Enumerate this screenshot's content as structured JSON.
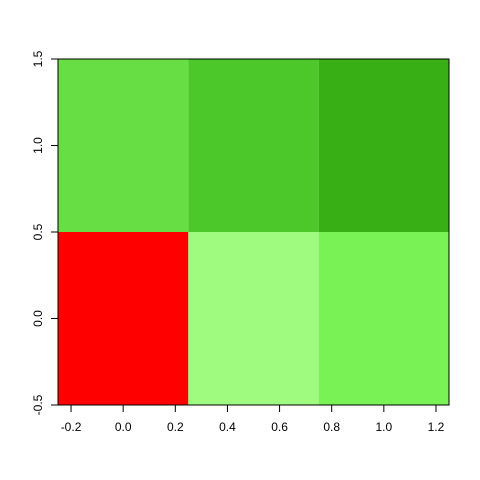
{
  "chart_data": {
    "type": "heatmap",
    "x": [
      0,
      0.5,
      1
    ],
    "y": [
      0,
      1
    ],
    "colors": [
      [
        "#ff0000",
        "#9efb80",
        "#78f254"
      ],
      [
        "#66de44",
        "#4cc82a",
        "#38b015"
      ]
    ],
    "xlim": [
      -0.25,
      1.25
    ],
    "ylim": [
      -0.5,
      1.5
    ],
    "xticks": [
      -0.2,
      {
        "value": 0,
        "label": "0.0"
      },
      0.2,
      0.4,
      0.6,
      0.8,
      {
        "value": 1,
        "label": "1.0"
      },
      1.2
    ],
    "yticks": [
      -0.5,
      {
        "value": 0,
        "label": "0.0"
      },
      0.5,
      {
        "value": 1,
        "label": "1.0"
      },
      1.5
    ]
  }
}
